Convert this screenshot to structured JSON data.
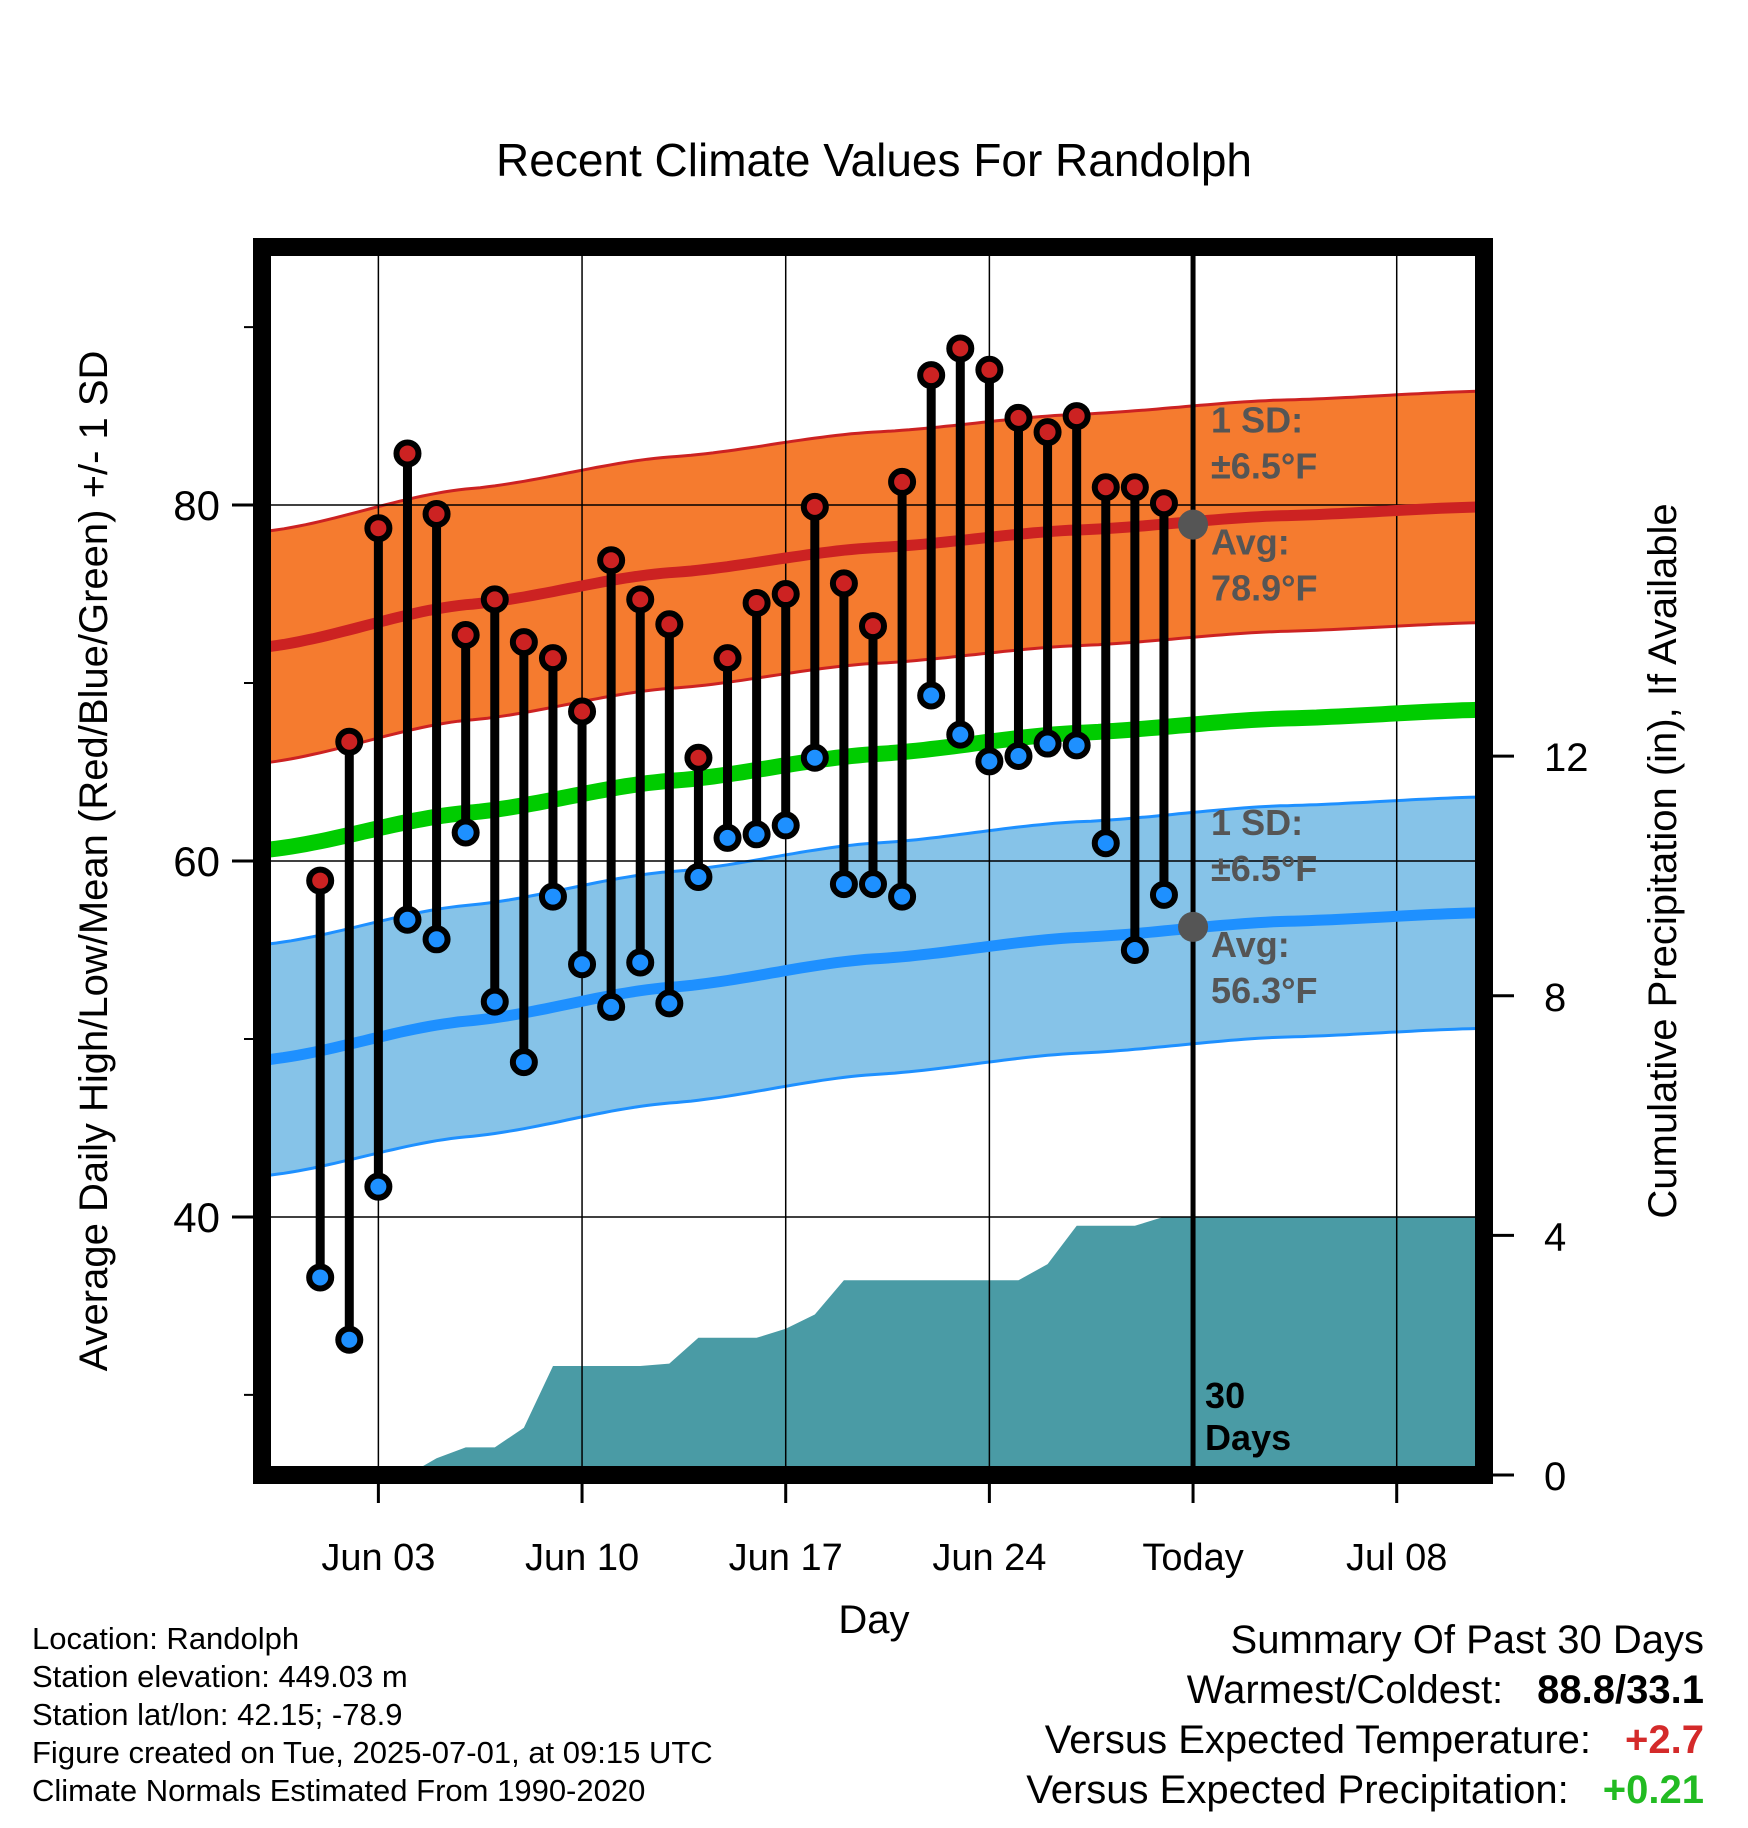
{
  "chart_data": {
    "type": "line",
    "title": "Recent Climate Values For Randolph",
    "xlabel": "Day",
    "ylabel": "Average Daily High/Low/Mean (Red/Blue/Green) +/- 1 SD",
    "y2label": "Cumulative Precipitation (in), If Available",
    "x_range": [
      "2025-05-30",
      "2025-07-11"
    ],
    "x_ticks": [
      {
        "date": "2025-06-03",
        "label": "Jun 03"
      },
      {
        "date": "2025-06-10",
        "label": "Jun 10"
      },
      {
        "date": "2025-06-17",
        "label": "Jun 17"
      },
      {
        "date": "2025-06-24",
        "label": "Jun 24"
      },
      {
        "date": "2025-07-01",
        "label": "Today"
      },
      {
        "date": "2025-07-08",
        "label": "Jul 08"
      }
    ],
    "ylim": [
      25.5,
      94.5
    ],
    "y_ticks": [
      40,
      60,
      80
    ],
    "y_minor_ticks": [
      30,
      50,
      70,
      90
    ],
    "y2lim": [
      0,
      20.5
    ],
    "y2_ticks": [
      0,
      4,
      8,
      12
    ],
    "grid": true,
    "today": "2025-07-01",
    "today_label": [
      "30",
      "Days"
    ],
    "dates": [
      "2025-06-01",
      "2025-06-02",
      "2025-06-03",
      "2025-06-04",
      "2025-06-05",
      "2025-06-06",
      "2025-06-07",
      "2025-06-08",
      "2025-06-09",
      "2025-06-10",
      "2025-06-11",
      "2025-06-12",
      "2025-06-13",
      "2025-06-14",
      "2025-06-15",
      "2025-06-16",
      "2025-06-17",
      "2025-06-18",
      "2025-06-19",
      "2025-06-20",
      "2025-06-21",
      "2025-06-22",
      "2025-06-23",
      "2025-06-24",
      "2025-06-25",
      "2025-06-26",
      "2025-06-27",
      "2025-06-28",
      "2025-06-29",
      "2025-06-30"
    ],
    "highs": [
      58.9,
      66.7,
      78.7,
      82.9,
      79.5,
      72.7,
      74.7,
      72.3,
      71.4,
      68.4,
      76.9,
      74.7,
      73.3,
      65.8,
      71.4,
      74.5,
      75.0,
      79.9,
      75.6,
      73.2,
      81.3,
      87.3,
      88.8,
      87.6,
      84.9,
      84.1,
      85.0,
      81.0,
      81.0,
      80.1
    ],
    "lows": [
      36.6,
      33.1,
      41.7,
      56.7,
      55.6,
      61.6,
      52.1,
      48.7,
      58.0,
      54.2,
      51.8,
      54.3,
      52.0,
      59.1,
      61.3,
      61.5,
      62.0,
      65.8,
      58.7,
      58.7,
      58.0,
      69.3,
      67.1,
      65.6,
      65.9,
      66.6,
      66.5,
      61.0,
      55.0,
      58.1
    ],
    "normals": {
      "series_dates": [
        "2025-05-30",
        "2025-06-06",
        "2025-06-13",
        "2025-06-20",
        "2025-06-27",
        "2025-07-04",
        "2025-07-11"
      ],
      "avg_high": [
        72.0,
        74.4,
        76.2,
        77.6,
        78.6,
        79.4,
        79.9
      ],
      "avg_low": [
        48.8,
        51.0,
        52.9,
        54.5,
        55.7,
        56.6,
        57.1
      ],
      "avg_mean": [
        60.6,
        62.7,
        64.5,
        66.0,
        67.2,
        68.0,
        68.5
      ],
      "high_sd": 6.5,
      "low_sd": 6.5
    },
    "precip_cumulative": {
      "dates": [
        "2025-05-30",
        "2025-06-02",
        "2025-06-03",
        "2025-06-04",
        "2025-06-05",
        "2025-06-06",
        "2025-06-07",
        "2025-06-08",
        "2025-06-09",
        "2025-06-10",
        "2025-06-11",
        "2025-06-12",
        "2025-06-13",
        "2025-06-14",
        "2025-06-15",
        "2025-06-16",
        "2025-06-17",
        "2025-06-18",
        "2025-06-19",
        "2025-06-20",
        "2025-06-21",
        "2025-06-22",
        "2025-06-23",
        "2025-06-24",
        "2025-06-25",
        "2025-06-26",
        "2025-06-27",
        "2025-06-28",
        "2025-06-29",
        "2025-06-30",
        "2025-07-01",
        "2025-07-11"
      ],
      "values": [
        0,
        0,
        0,
        0,
        0.28,
        0.46,
        0.46,
        0.79,
        1.82,
        1.82,
        1.82,
        1.82,
        1.86,
        2.29,
        2.29,
        2.29,
        2.44,
        2.68,
        3.25,
        3.25,
        3.25,
        3.25,
        3.25,
        3.25,
        3.25,
        3.52,
        4.16,
        4.16,
        4.16,
        4.31,
        4.31,
        4.31
      ]
    },
    "annotations": {
      "high_sd": [
        "1 SD:",
        "±6.5°F"
      ],
      "high_avg": [
        "Avg:",
        "78.9°F"
      ],
      "low_sd": [
        "1 SD:",
        "±6.5°F"
      ],
      "low_avg": [
        "Avg:",
        "56.3°F"
      ],
      "high_avg_value": 78.9,
      "low_avg_value": 56.3
    },
    "colors": {
      "high": "#cc2222",
      "high_band": "#f57b2f",
      "low": "#1e90ff",
      "low_band": "#86c3e8",
      "mean": "#00cc00",
      "precip": "#4a9ba5",
      "annotation": "#555555"
    }
  },
  "info": {
    "location": "Location: Randolph",
    "elevation": "Station elevation: 449.03 m",
    "latlon": "Station lat/lon: 42.15; -78.9",
    "created": "Figure created on Tue, 2025-07-01, at 09:15 UTC",
    "normals": "Climate Normals Estimated From 1990-2020"
  },
  "summary": {
    "title": "Summary Of Past 30 Days",
    "warmest_coldest_label": "Warmest/Coldest:",
    "warmest_coldest_value": "88.8/33.1",
    "temp_label": "Versus Expected Temperature:",
    "temp_value": "+2.7",
    "temp_color": "#d42a2a",
    "precip_label": "Versus Expected Precipitation:",
    "precip_value": "+0.21",
    "precip_color": "#22bb22"
  }
}
